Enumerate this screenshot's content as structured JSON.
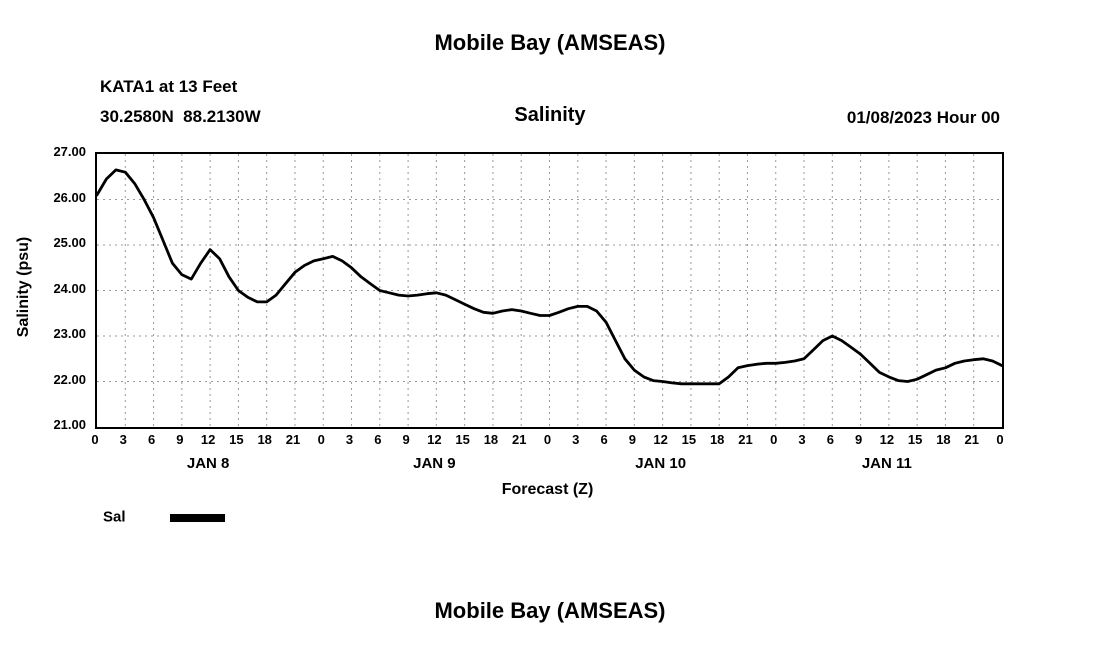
{
  "titles": {
    "main": "Mobile Bay (AMSEAS)",
    "station": "KATA1 at 13 Feet",
    "coords": "30.2580N  88.2130W",
    "variable": "Salinity",
    "date": "01/08/2023 Hour 00",
    "bottom": "Mobile Bay (AMSEAS)"
  },
  "legend": {
    "label": "Sal",
    "line_color": "#000000"
  },
  "chart_data": {
    "type": "line",
    "title": "Salinity",
    "xlabel": "Forecast (Z)",
    "ylabel": "Salinity (psu)",
    "xlim_hours": [
      0,
      96
    ],
    "ylim": [
      21,
      27
    ],
    "grid": "dashed",
    "grid_color": "#999999",
    "line_color": "#000000",
    "y_ticks": [
      {
        "value": 21,
        "label": "21.00"
      },
      {
        "value": 22,
        "label": "22.00"
      },
      {
        "value": 23,
        "label": "23.00"
      },
      {
        "value": 24,
        "label": "24.00"
      },
      {
        "value": 25,
        "label": "25.00"
      },
      {
        "value": 26,
        "label": "26.00"
      },
      {
        "value": 27,
        "label": "27.00"
      }
    ],
    "x_tick_hours": [
      0,
      3,
      6,
      9,
      12,
      15,
      18,
      21,
      24,
      27,
      30,
      33,
      36,
      39,
      42,
      45,
      48,
      51,
      54,
      57,
      60,
      63,
      66,
      69,
      72,
      75,
      78,
      81,
      84,
      87,
      90,
      93,
      96
    ],
    "x_tick_labels": [
      "0",
      "3",
      "6",
      "9",
      "12",
      "15",
      "18",
      "21",
      "0",
      "3",
      "6",
      "9",
      "12",
      "15",
      "18",
      "21",
      "0",
      "3",
      "6",
      "9",
      "12",
      "15",
      "18",
      "21",
      "0",
      "3",
      "6",
      "9",
      "12",
      "15",
      "18",
      "21",
      "0"
    ],
    "day_labels": [
      {
        "hour": 12,
        "label": "JAN 8"
      },
      {
        "hour": 36,
        "label": "JAN 9"
      },
      {
        "hour": 60,
        "label": "JAN 10"
      },
      {
        "hour": 84,
        "label": "JAN 11"
      }
    ],
    "series": [
      {
        "name": "Sal",
        "color": "#000000",
        "points": [
          [
            0,
            26.1
          ],
          [
            1,
            26.45
          ],
          [
            2,
            26.65
          ],
          [
            3,
            26.6
          ],
          [
            4,
            26.35
          ],
          [
            5,
            26.0
          ],
          [
            6,
            25.6
          ],
          [
            7,
            25.1
          ],
          [
            8,
            24.6
          ],
          [
            9,
            24.35
          ],
          [
            10,
            24.25
          ],
          [
            11,
            24.6
          ],
          [
            12,
            24.9
          ],
          [
            13,
            24.7
          ],
          [
            14,
            24.3
          ],
          [
            15,
            24.0
          ],
          [
            16,
            23.85
          ],
          [
            17,
            23.75
          ],
          [
            18,
            23.75
          ],
          [
            19,
            23.9
          ],
          [
            20,
            24.15
          ],
          [
            21,
            24.4
          ],
          [
            22,
            24.55
          ],
          [
            23,
            24.65
          ],
          [
            24,
            24.7
          ],
          [
            25,
            24.75
          ],
          [
            26,
            24.65
          ],
          [
            27,
            24.5
          ],
          [
            28,
            24.3
          ],
          [
            29,
            24.15
          ],
          [
            30,
            24.0
          ],
          [
            31,
            23.95
          ],
          [
            32,
            23.9
          ],
          [
            33,
            23.88
          ],
          [
            34,
            23.9
          ],
          [
            35,
            23.93
          ],
          [
            36,
            23.95
          ],
          [
            37,
            23.9
          ],
          [
            38,
            23.8
          ],
          [
            39,
            23.7
          ],
          [
            40,
            23.6
          ],
          [
            41,
            23.52
          ],
          [
            42,
            23.5
          ],
          [
            43,
            23.55
          ],
          [
            44,
            23.58
          ],
          [
            45,
            23.55
          ],
          [
            46,
            23.5
          ],
          [
            47,
            23.45
          ],
          [
            48,
            23.45
          ],
          [
            49,
            23.52
          ],
          [
            50,
            23.6
          ],
          [
            51,
            23.65
          ],
          [
            52,
            23.65
          ],
          [
            53,
            23.55
          ],
          [
            54,
            23.3
          ],
          [
            55,
            22.9
          ],
          [
            56,
            22.5
          ],
          [
            57,
            22.25
          ],
          [
            58,
            22.1
          ],
          [
            59,
            22.02
          ],
          [
            60,
            22.0
          ],
          [
            61,
            21.97
          ],
          [
            62,
            21.95
          ],
          [
            63,
            21.95
          ],
          [
            64,
            21.95
          ],
          [
            65,
            21.95
          ],
          [
            66,
            21.95
          ],
          [
            67,
            22.1
          ],
          [
            68,
            22.3
          ],
          [
            69,
            22.35
          ],
          [
            70,
            22.38
          ],
          [
            71,
            22.4
          ],
          [
            72,
            22.4
          ],
          [
            73,
            22.42
          ],
          [
            74,
            22.45
          ],
          [
            75,
            22.5
          ],
          [
            76,
            22.7
          ],
          [
            77,
            22.9
          ],
          [
            78,
            23.0
          ],
          [
            79,
            22.9
          ],
          [
            80,
            22.75
          ],
          [
            81,
            22.6
          ],
          [
            82,
            22.4
          ],
          [
            83,
            22.2
          ],
          [
            84,
            22.1
          ],
          [
            85,
            22.02
          ],
          [
            86,
            22.0
          ],
          [
            87,
            22.05
          ],
          [
            88,
            22.15
          ],
          [
            89,
            22.25
          ],
          [
            90,
            22.3
          ],
          [
            91,
            22.4
          ],
          [
            92,
            22.45
          ],
          [
            93,
            22.48
          ],
          [
            94,
            22.5
          ],
          [
            95,
            22.45
          ],
          [
            96,
            22.35
          ]
        ]
      }
    ]
  }
}
